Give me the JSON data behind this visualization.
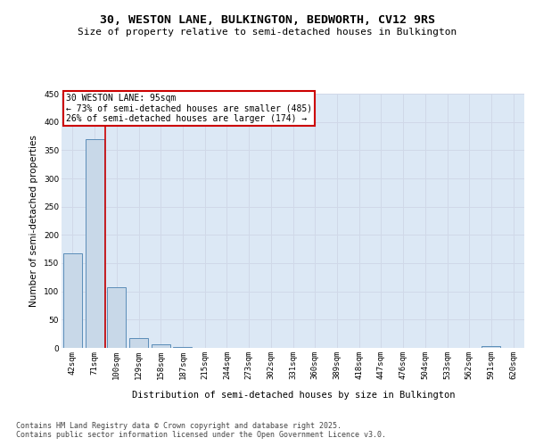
{
  "title1": "30, WESTON LANE, BULKINGTON, BEDWORTH, CV12 9RS",
  "title2": "Size of property relative to semi-detached houses in Bulkington",
  "xlabel": "Distribution of semi-detached houses by size in Bulkington",
  "ylabel": "Number of semi-detached properties",
  "categories": [
    "42sqm",
    "71sqm",
    "100sqm",
    "129sqm",
    "158sqm",
    "187sqm",
    "215sqm",
    "244sqm",
    "273sqm",
    "302sqm",
    "331sqm",
    "360sqm",
    "389sqm",
    "418sqm",
    "447sqm",
    "476sqm",
    "504sqm",
    "533sqm",
    "562sqm",
    "591sqm",
    "620sqm"
  ],
  "values": [
    168,
    370,
    107,
    18,
    6,
    2,
    0,
    0,
    0,
    0,
    0,
    0,
    0,
    0,
    0,
    0,
    0,
    0,
    0,
    3,
    0
  ],
  "bar_color": "#c8d8e8",
  "bar_edge_color": "#5b8db8",
  "highlight_color": "#cc0000",
  "annotation_text": "30 WESTON LANE: 95sqm\n← 73% of semi-detached houses are smaller (485)\n26% of semi-detached houses are larger (174) →",
  "annotation_edge_color": "#cc0000",
  "ylim": [
    0,
    450
  ],
  "yticks": [
    0,
    50,
    100,
    150,
    200,
    250,
    300,
    350,
    400,
    450
  ],
  "grid_color": "#d0d8e8",
  "background_color": "#dce8f5",
  "footer_text": "Contains HM Land Registry data © Crown copyright and database right 2025.\nContains public sector information licensed under the Open Government Licence v3.0.",
  "title1_fontsize": 9.5,
  "title2_fontsize": 8,
  "axis_fontsize": 7.5,
  "tick_fontsize": 6.5,
  "annotation_fontsize": 7,
  "footer_fontsize": 6
}
